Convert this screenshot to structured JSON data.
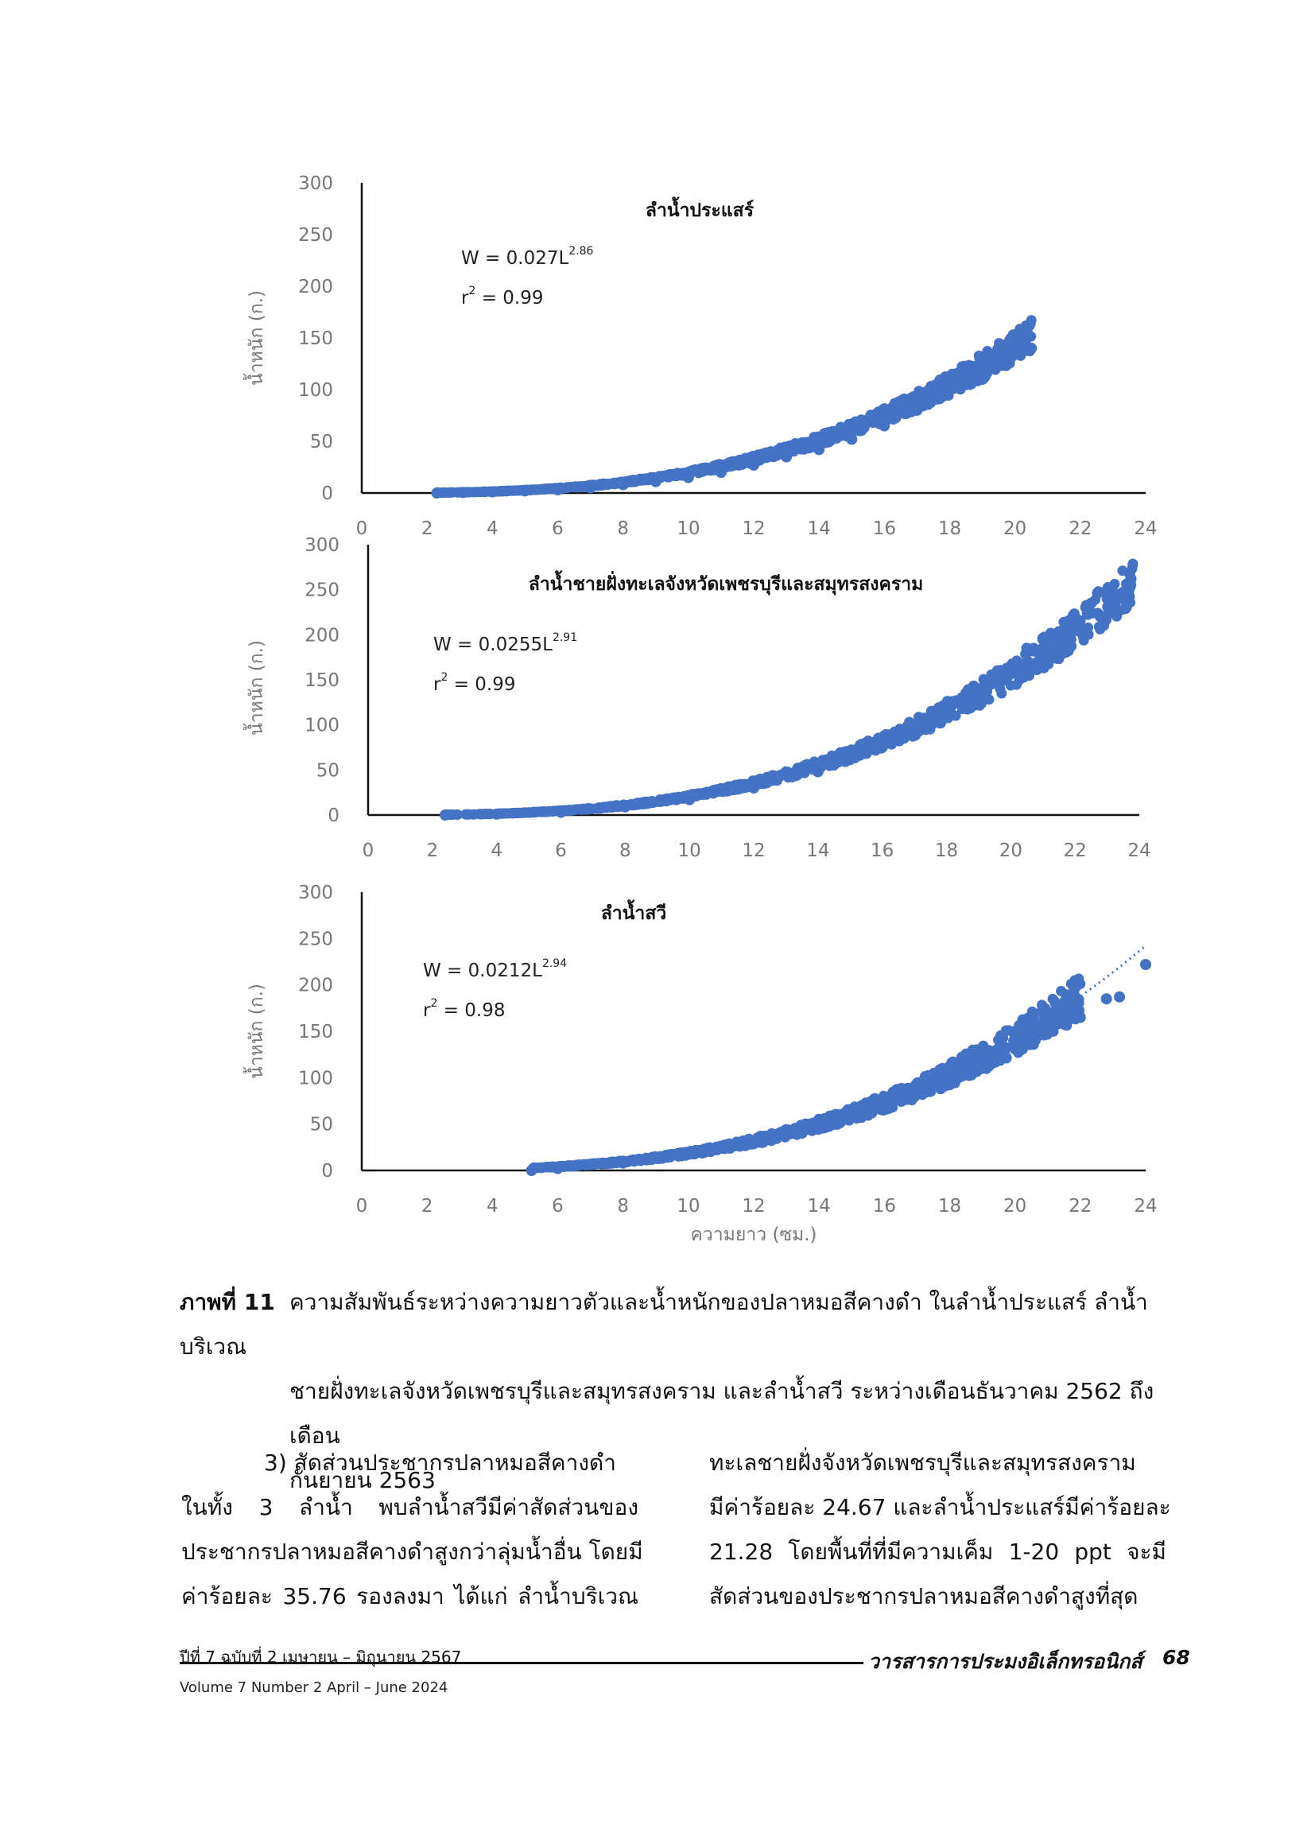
{
  "chart_data": [
    {
      "type": "scatter",
      "title": "ลำน้ำประแสร์",
      "equation_main": "W = 0.027L",
      "equation_exp": "2.86",
      "r2_main": "r",
      "r2_exp": "2",
      "r2_value": " = 0.99",
      "xlabel": "",
      "ylabel": "น้ำหนัก (ก.)",
      "xlim": [
        0,
        24
      ],
      "ylim": [
        0,
        300
      ],
      "xticks": [
        "0",
        "2",
        "4",
        "6",
        "8",
        "10",
        "12",
        "14",
        "16",
        "18",
        "20",
        "22",
        "24"
      ],
      "yticks": [
        "0",
        "50",
        "100",
        "150",
        "200",
        "250",
        "300"
      ],
      "model": {
        "a": 0.027,
        "b": 2.86,
        "xmin": 2.3,
        "xmax": 20.5,
        "scatter": 0.1
      },
      "points": [
        [
          2.3,
          0
        ],
        [
          3.1,
          0.5
        ],
        [
          4.0,
          1
        ],
        [
          5.0,
          2
        ],
        [
          6.0,
          3
        ],
        [
          7.0,
          5
        ],
        [
          8.0,
          8
        ],
        [
          9.0,
          11
        ],
        [
          10.0,
          15
        ],
        [
          11.0,
          20
        ],
        [
          12.0,
          27
        ],
        [
          13.0,
          35
        ],
        [
          14.0,
          42
        ],
        [
          15.0,
          52
        ],
        [
          16.0,
          65
        ],
        [
          17.0,
          80
        ],
        [
          17.5,
          90
        ],
        [
          18.0,
          100
        ],
        [
          18.5,
          105
        ],
        [
          19.0,
          110
        ],
        [
          19.6,
          137
        ],
        [
          20.5,
          140
        ]
      ],
      "trendline": true
    },
    {
      "type": "scatter",
      "title": "ลำน้ำชายฝั่งทะเลจังหวัดเพชรบุรีและสมุทรสงคราม",
      "equation_main": "W  = 0.0255L",
      "equation_exp": "2.91",
      "r2_main": "r",
      "r2_exp": "2",
      "r2_value": " = 0.99",
      "xlabel": "",
      "ylabel": "น้ำหนัก (ก.)",
      "xlim": [
        0,
        24
      ],
      "ylim": [
        0,
        300
      ],
      "xticks": [
        "0",
        "2",
        "4",
        "6",
        "8",
        "10",
        "12",
        "14",
        "16",
        "18",
        "20",
        "22",
        "24"
      ],
      "yticks": [
        "0",
        "50",
        "100",
        "150",
        "200",
        "250",
        "300"
      ],
      "model": {
        "a": 0.0255,
        "b": 2.91,
        "xmin": 2.4,
        "xmax": 23.8,
        "scatter": 0.1
      },
      "points": [
        [
          2.4,
          0
        ],
        [
          4.0,
          1
        ],
        [
          6.0,
          3
        ],
        [
          8.0,
          9
        ],
        [
          10.0,
          17
        ],
        [
          12.0,
          30
        ],
        [
          14.0,
          48
        ],
        [
          16.0,
          75
        ],
        [
          17.0,
          95
        ],
        [
          18.0,
          115
        ],
        [
          19.0,
          140
        ],
        [
          20.0,
          165
        ],
        [
          20.5,
          185
        ],
        [
          21.0,
          195
        ],
        [
          22.0,
          220
        ],
        [
          22.5,
          235
        ],
        [
          23.0,
          240
        ],
        [
          23.7,
          268
        ]
      ],
      "trendline": false
    },
    {
      "type": "scatter",
      "title": "ลำน้ำสวี",
      "equation_main": "W  = 0.0212L",
      "equation_exp": "2.94",
      "r2_main": "r",
      "r2_exp": "2",
      "r2_value": " = 0.98",
      "xlabel": "ความยาว (ซม.)",
      "ylabel": "น้ำหนัก (ก.)",
      "xlim": [
        0,
        24
      ],
      "ylim": [
        0,
        300
      ],
      "xticks": [
        "0",
        "2",
        "4",
        "6",
        "8",
        "10",
        "12",
        "14",
        "16",
        "18",
        "20",
        "22",
        "24"
      ],
      "yticks": [
        "0",
        "50",
        "100",
        "150",
        "200",
        "250",
        "300"
      ],
      "model": {
        "a": 0.0212,
        "b": 2.94,
        "xmin": 5.2,
        "xmax": 22.0,
        "scatter": 0.12
      },
      "points": [
        [
          5.2,
          0
        ],
        [
          6.0,
          2
        ],
        [
          8.0,
          8
        ],
        [
          10.0,
          18
        ],
        [
          12.0,
          32
        ],
        [
          14.0,
          50
        ],
        [
          16.0,
          75
        ],
        [
          17.0,
          90
        ],
        [
          18.0,
          110
        ],
        [
          19.0,
          130
        ],
        [
          20.0,
          150
        ],
        [
          20.5,
          165
        ],
        [
          21.0,
          155
        ],
        [
          21.5,
          160
        ],
        [
          22.0,
          165
        ],
        [
          22.8,
          185
        ],
        [
          23.2,
          187
        ],
        [
          24.0,
          222
        ]
      ],
      "trendline": true
    }
  ],
  "caption": {
    "label": "ภาพที่ 11",
    "lines": [
      "ความสัมพันธ์ระหว่างความยาวตัวและน้ำหนักของปลาหมอสีคางดำ ในลำน้ำประแสร์ ลำน้ำบริเวณ",
      "ชายฝั่งทะเลจังหวัดเพชรบุรีและสมุทรสงคราม และลำน้ำสวี ระหว่างเดือนธันวาคม 2562 ถึงเดือน",
      "กันยายน 2563"
    ]
  },
  "body": {
    "left": [
      "3) สัดส่วนประชากรปลาหมอสีคางดำ",
      "ในทั้ง 3 ลำน้ำ พบลำน้ำสวีมีค่าสัดส่วนของ",
      "ประชากรปลาหมอสีคางดำสูงกว่าลุ่มน้ำอื่น โดยมี",
      "ค่าร้อยละ 35.76 รองลงมา ได้แก่ ลำน้ำบริเวณ"
    ],
    "right": [
      "ทะเลชายฝั่งจังหวัดเพชรบุรีและสมุทรสงคราม",
      "มีค่าร้อยละ 24.67 และลำน้ำประแสร์มีค่าร้อยละ",
      "21.28 โดยพื้นที่ที่มีความเค็ม 1-20 ppt จะมี",
      "สัดส่วนของประชากรปลาหมอสีคางดำสูงที่สุด"
    ]
  },
  "footer": {
    "issue_th": "ปีที่ 7 ฉบับที่ 2 เมษายน – มิถุนายน 2567",
    "issue_en": "Volume 7 Number 2 April – June 2024",
    "journal": "วารสารการประมงอิเล็กทรอนิกส์",
    "page": "68"
  },
  "colors": {
    "marker": "#4472C4",
    "axis": "#111111",
    "tick_text": "#777777"
  }
}
